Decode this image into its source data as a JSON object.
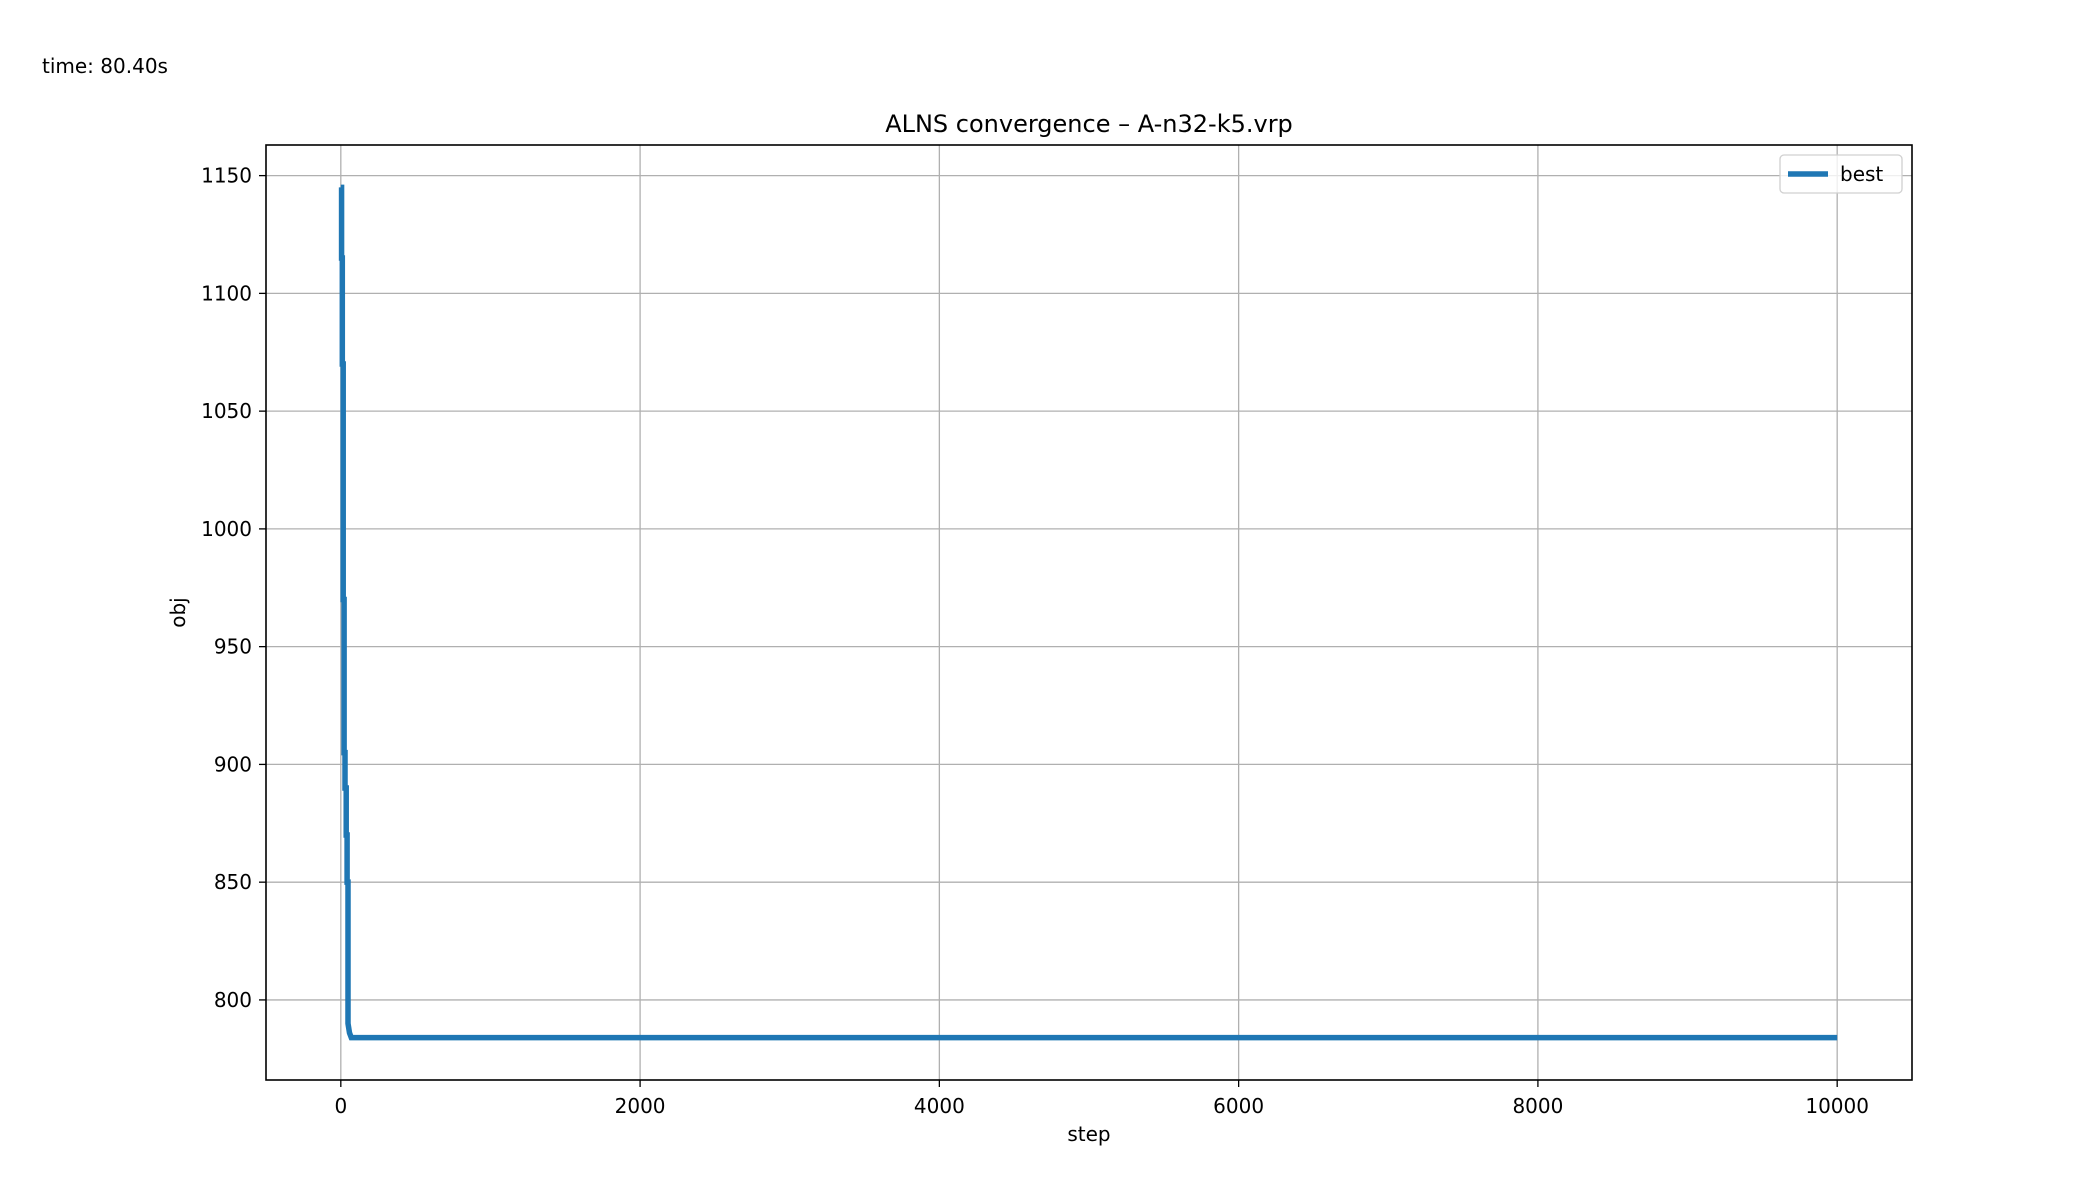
{
  "header": {
    "time_text": "time: 80.40s"
  },
  "chart_data": {
    "type": "line",
    "title": "ALNS convergence – A-n32-k5.vrp",
    "xlabel": "step",
    "ylabel": "obj",
    "xlim": [
      -500,
      10500
    ],
    "ylim": [
      766,
      1163
    ],
    "xticks": [
      0,
      2000,
      4000,
      6000,
      8000,
      10000
    ],
    "yticks": [
      800,
      850,
      900,
      950,
      1000,
      1050,
      1100,
      1150
    ],
    "grid": true,
    "legend": "top-right",
    "series": [
      {
        "name": "best",
        "color": "#1f77b4",
        "x": [
          0,
          5,
          5,
          10,
          10,
          16,
          16,
          22,
          22,
          28,
          28,
          36,
          36,
          42,
          42,
          48,
          48,
          58,
          70,
          100,
          10000
        ],
        "y": [
          1145,
          1145,
          1115,
          1115,
          1070,
          1070,
          970,
          970,
          905,
          905,
          890,
          890,
          870,
          870,
          850,
          850,
          790,
          786,
          784,
          784,
          784
        ]
      }
    ]
  }
}
